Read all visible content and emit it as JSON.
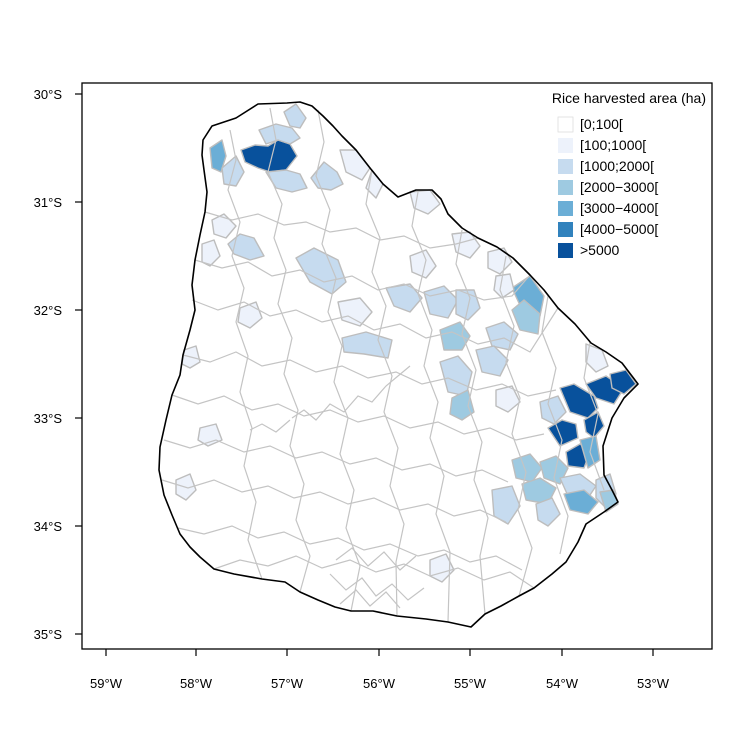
{
  "legend": {
    "title": "Rice harvested area (ha)",
    "classes": [
      {
        "label": "[0;100[",
        "color": "#ffffff"
      },
      {
        "label": "[100;1000[",
        "color": "#edf2fb"
      },
      {
        "label": "[1000;2000[",
        "color": "#c6dbef"
      },
      {
        "label": "[2000−3000[",
        "color": "#9ecae1"
      },
      {
        "label": "[3000−4000[",
        "color": "#6baed6"
      },
      {
        "label": "[4000−5000[",
        "color": "#3182bd"
      },
      {
        "label": ">5000",
        "color": "#08519c"
      }
    ]
  },
  "axes": {
    "x_ticks": [
      "59°W",
      "58°W",
      "57°W",
      "56°W",
      "55°W",
      "54°W",
      "53°W"
    ],
    "y_ticks": [
      "30°S",
      "31°S",
      "32°S",
      "33°S",
      "34°S",
      "35°S"
    ]
  },
  "map": {
    "country": "Uruguay",
    "variable": "Rice harvested area (ha)",
    "boundary_color": "#bdbdbd",
    "outline_color": "#000000",
    "districts": [
      {
        "area": "northwest corner",
        "class": 4
      },
      {
        "area": "north",
        "class": 6
      },
      {
        "area": "north",
        "class": 2
      },
      {
        "area": "north",
        "class": 2
      },
      {
        "area": "north",
        "class": 2
      },
      {
        "area": "north",
        "class": 2
      },
      {
        "area": "northwest",
        "class": 2
      },
      {
        "area": "west",
        "class": 2
      },
      {
        "area": "west",
        "class": 1
      },
      {
        "area": "centre-north",
        "class": 2
      },
      {
        "area": "centre-north",
        "class": 1
      },
      {
        "area": "centre",
        "class": 2
      },
      {
        "area": "centre",
        "class": 2
      },
      {
        "area": "centre",
        "class": 2
      },
      {
        "area": "centre-east",
        "class": 2
      },
      {
        "area": "northeast",
        "class": 3
      },
      {
        "area": "northeast",
        "class": 4
      },
      {
        "area": "east",
        "class": 3
      },
      {
        "area": "east",
        "class": 2
      },
      {
        "area": "east",
        "class": 2
      },
      {
        "area": "east",
        "class": 2
      },
      {
        "area": "east",
        "class": 3
      },
      {
        "area": "east",
        "class": 6
      },
      {
        "area": "east",
        "class": 6
      },
      {
        "area": "east",
        "class": 6
      },
      {
        "area": "east",
        "class": 6
      },
      {
        "area": "east",
        "class": 6
      },
      {
        "area": "east",
        "class": 6
      },
      {
        "area": "east",
        "class": 4
      },
      {
        "area": "east",
        "class": 2
      },
      {
        "area": "southeast",
        "class": 3
      },
      {
        "area": "southeast",
        "class": 3
      },
      {
        "area": "southeast",
        "class": 3
      },
      {
        "area": "southeast",
        "class": 2
      },
      {
        "area": "southeast",
        "class": 2
      },
      {
        "area": "southeast",
        "class": 2
      },
      {
        "area": "southeast",
        "class": 4
      },
      {
        "area": "southeast",
        "class": 3
      },
      {
        "area": "southeast",
        "class": 2
      },
      {
        "area": "north",
        "class": 1
      },
      {
        "area": "north",
        "class": 1
      },
      {
        "area": "north",
        "class": 1
      },
      {
        "area": "north",
        "class": 1
      },
      {
        "area": "west",
        "class": 1
      },
      {
        "area": "west",
        "class": 1
      },
      {
        "area": "west",
        "class": 1
      },
      {
        "area": "centre",
        "class": 1
      },
      {
        "area": "centre-east",
        "class": 1
      },
      {
        "area": "northeast",
        "class": 1
      },
      {
        "area": "northeast",
        "class": 1
      },
      {
        "area": "east",
        "class": 1
      },
      {
        "area": "east",
        "class": 1
      },
      {
        "area": "southwest",
        "class": 1
      },
      {
        "area": "south",
        "class": 1
      }
    ]
  }
}
